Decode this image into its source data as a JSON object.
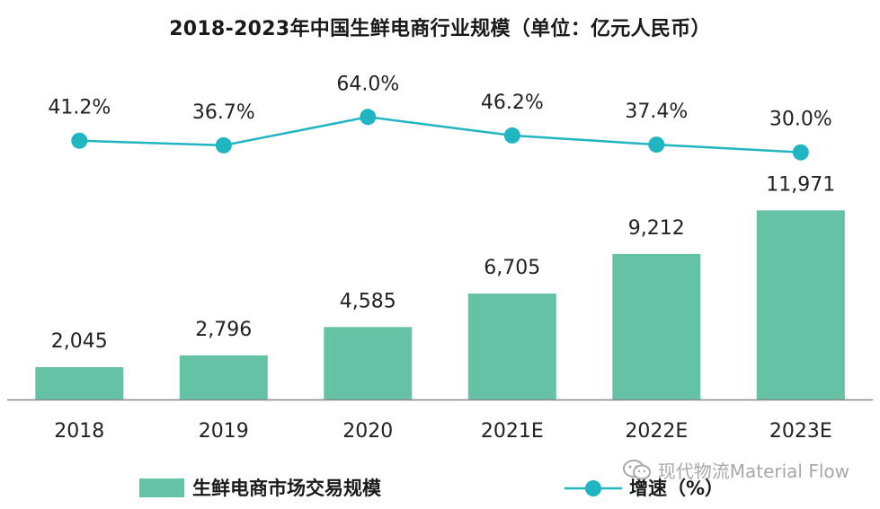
{
  "chart_data": {
    "type": "bar+line",
    "title": "2018-2023年中国生鲜电商行业规模（单位：亿元人民币）",
    "categories": [
      "2018",
      "2019",
      "2020",
      "2021E",
      "2022E",
      "2023E"
    ],
    "series": [
      {
        "name": "生鲜电商市场交易规模",
        "type": "bar",
        "values": [
          2045,
          2796,
          4585,
          6705,
          9212,
          11971
        ],
        "labels": [
          "2,045",
          "2,796",
          "4,585",
          "6,705",
          "9,212",
          "11,971"
        ],
        "color": "#66c2a5"
      },
      {
        "name": "增速（%）",
        "type": "line",
        "values": [
          41.2,
          36.7,
          64.0,
          46.2,
          37.4,
          30.0
        ],
        "labels": [
          "41.2%",
          "36.7%",
          "64.0%",
          "46.2%",
          "37.4%",
          "30.0%"
        ],
        "color": "#1fb5c1"
      }
    ],
    "ylim_bar": [
      0,
      12900
    ],
    "ylim_line": [
      0,
      100
    ],
    "legend_position": "bottom",
    "grid": false
  },
  "watermark": {
    "text": "现代物流Material Flow",
    "icon": "wechat-icon"
  },
  "colors": {
    "bar": "#66c2a5",
    "line": "#1fb5c1",
    "axis": "#888888"
  }
}
